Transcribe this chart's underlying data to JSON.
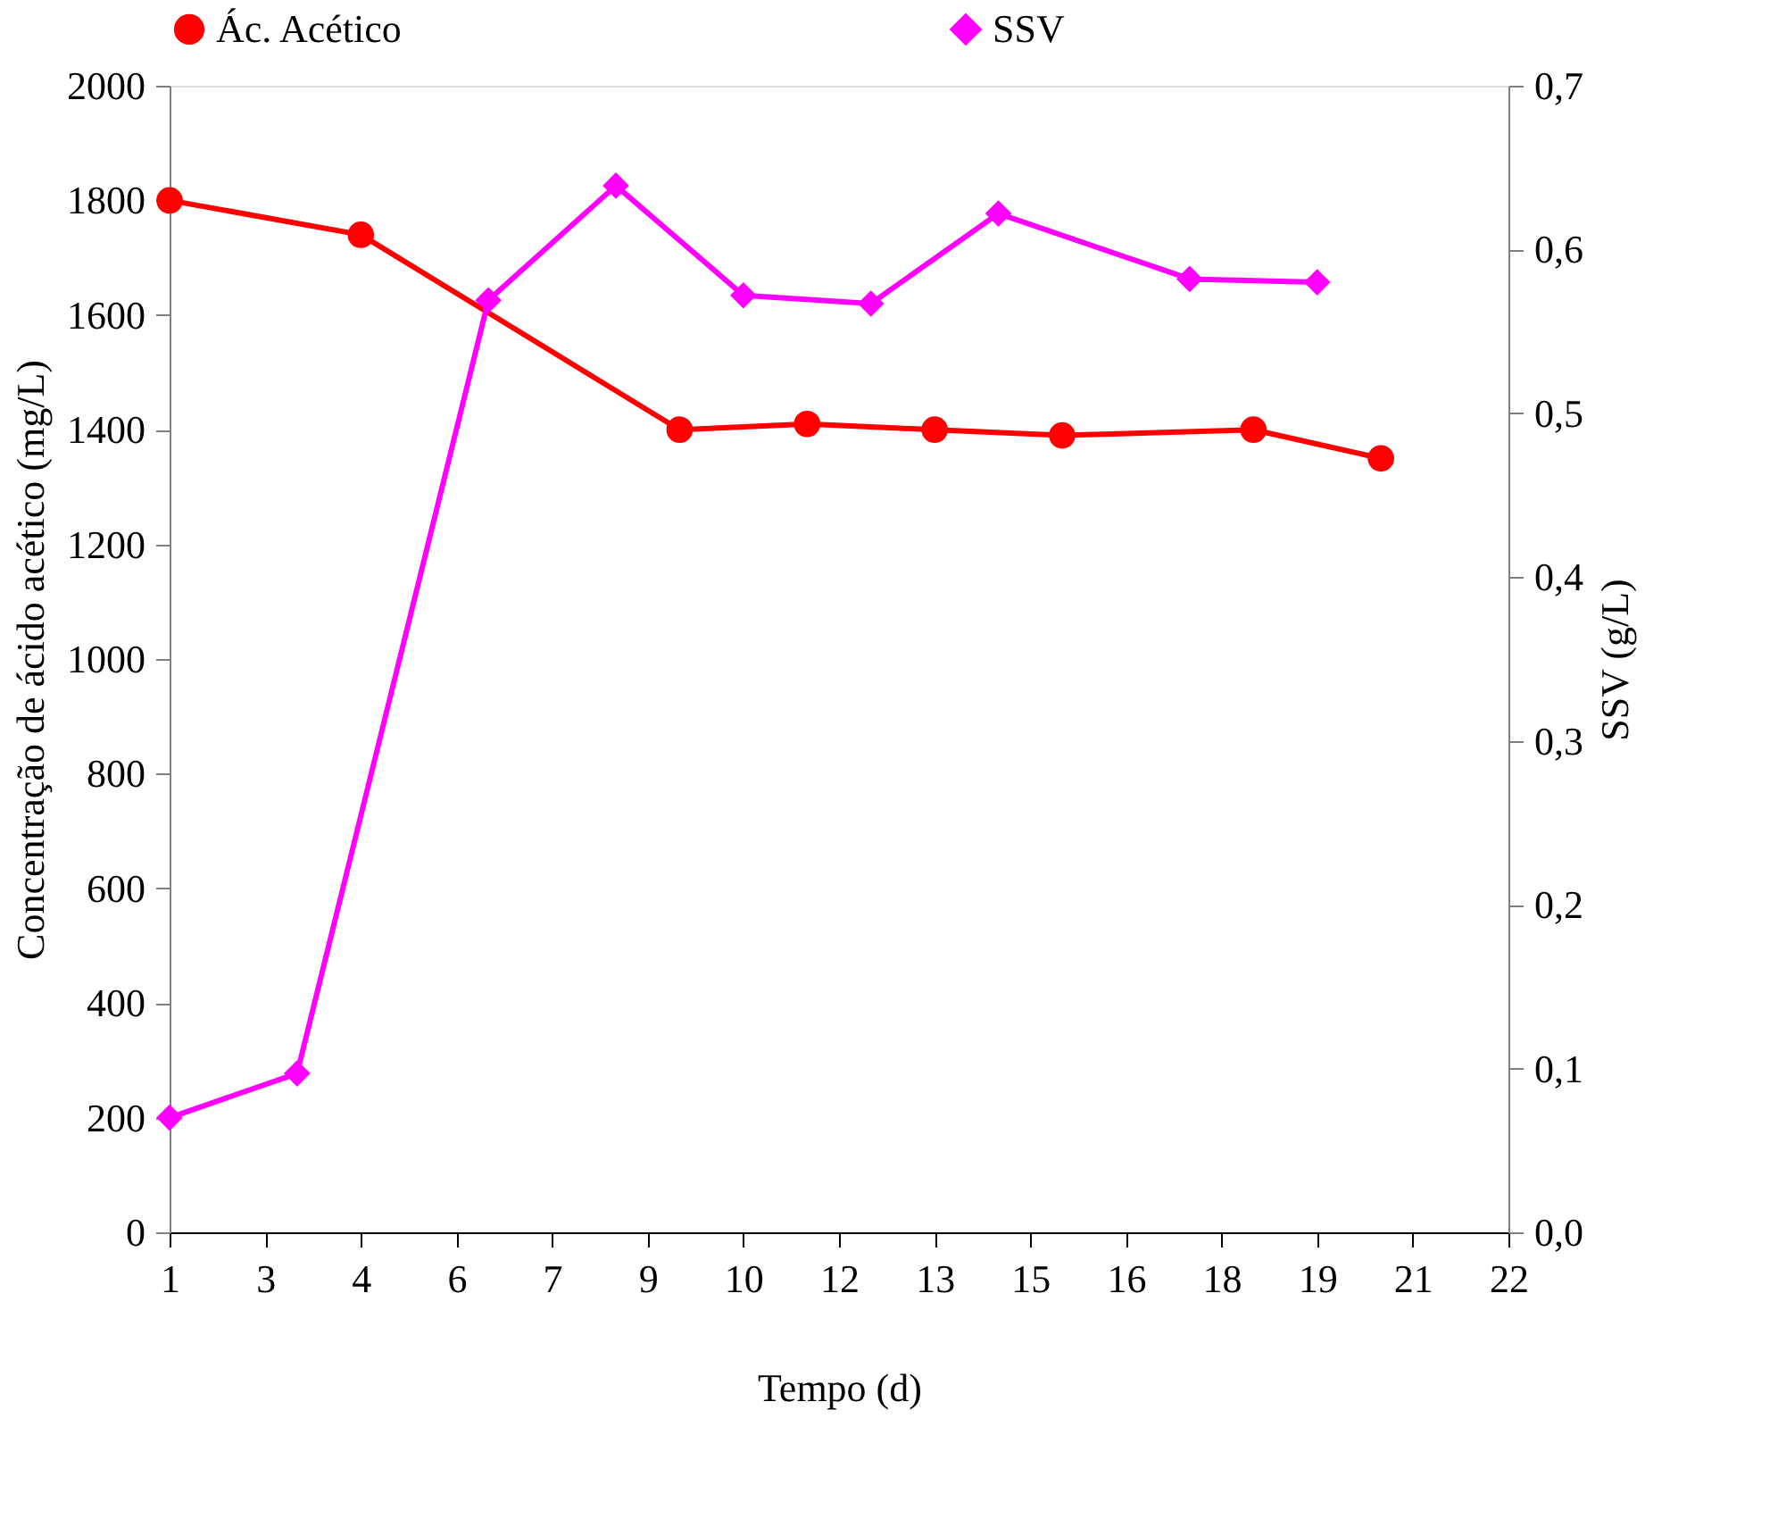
{
  "chart_data": {
    "type": "line",
    "xlabel": "Tempo (d)",
    "ylabel": "Concentração de ácido acético (mg/L)",
    "y2label": "SSV (g/L)",
    "xlim": [
      1,
      22
    ],
    "xticks": [
      1,
      {
        "value": 2.5,
        "label": "3"
      },
      4,
      {
        "value": 5.5,
        "label": "6"
      },
      7,
      {
        "value": 8.5,
        "label": "9"
      },
      10,
      {
        "value": 11.5,
        "label": "12"
      },
      13,
      {
        "value": 14.5,
        "label": "15"
      },
      16,
      {
        "value": 17.5,
        "label": "18"
      },
      19,
      {
        "value": 20.5,
        "label": "21"
      },
      22
    ],
    "ylim": [
      0,
      2000
    ],
    "yticks": [
      0,
      200,
      400,
      600,
      800,
      1000,
      1200,
      1400,
      1600,
      1800,
      2000
    ],
    "y2lim": [
      0,
      0.7
    ],
    "y2ticks": [
      {
        "value": 0,
        "label": "0,0"
      },
      {
        "value": 0.1,
        "label": "0,1"
      },
      {
        "value": 0.2,
        "label": "0,2"
      },
      {
        "value": 0.3,
        "label": "0,3"
      },
      {
        "value": 0.4,
        "label": "0,4"
      },
      {
        "value": 0.5,
        "label": "0,5"
      },
      {
        "value": 0.6,
        "label": "0,6"
      },
      {
        "value": 0.7,
        "label": "0,7"
      }
    ],
    "grid": false,
    "legend": "top",
    "series": [
      {
        "name": "Ác. Acético",
        "color": "#ff0000",
        "marker": "circle",
        "x": [
          1,
          4,
          9,
          11,
          13,
          15,
          18,
          20
        ],
        "values": [
          1800,
          1740,
          1400,
          1410,
          1400,
          1390,
          1400,
          1350
        ]
      },
      {
        "name": "SSV",
        "color": "#ff00ff",
        "marker": "diamond",
        "axis": "y2",
        "x": [
          1,
          3,
          6,
          8,
          10,
          12,
          14,
          17,
          19
        ],
        "values": [
          0.07,
          0.097,
          0.569,
          0.639,
          0.572,
          0.567,
          0.622,
          0.582,
          0.58
        ]
      }
    ]
  }
}
